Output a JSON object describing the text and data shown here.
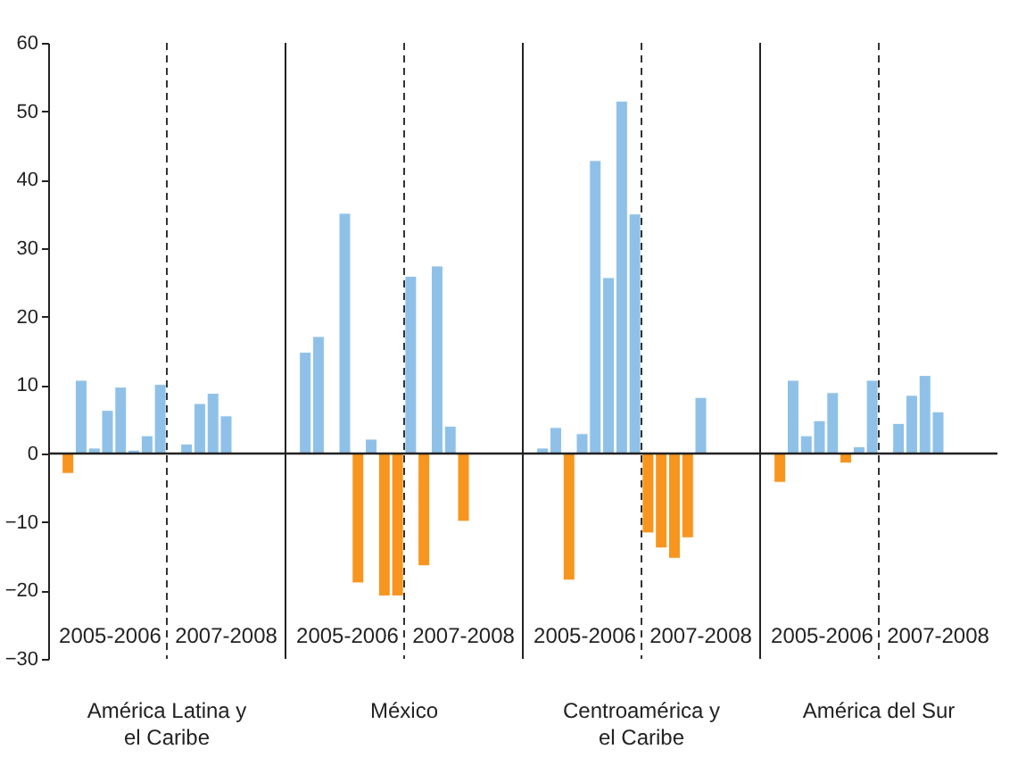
{
  "chart_data": {
    "type": "bar",
    "categories": [
      null,
      null,
      null,
      null,
      null,
      null,
      null,
      null,
      null,
      null,
      null,
      null,
      null,
      null,
      null,
      null,
      null,
      null,
      null,
      null,
      null,
      null,
      null,
      null,
      null,
      null,
      null,
      null,
      null,
      null,
      null,
      null,
      null,
      null,
      null,
      null,
      null,
      null,
      null,
      null,
      null,
      null,
      null,
      null,
      null,
      null,
      null,
      null,
      null,
      null,
      null,
      null,
      null,
      null,
      null,
      null,
      null,
      null,
      null,
      null,
      null,
      null,
      null,
      null,
      null,
      null,
      null,
      null,
      null,
      null,
      null,
      null
    ],
    "values": [
      null,
      -2.9,
      10.7,
      0.8,
      6.3,
      9.7,
      0.5,
      2.6,
      10.1,
      null,
      1.4,
      7.3,
      8.8,
      5.5,
      null,
      null,
      null,
      null,
      null,
      14.8,
      17.1,
      null,
      35.1,
      -18.9,
      2.1,
      -20.8,
      -20.8,
      25.9,
      -16.4,
      27.4,
      4.0,
      -9.9,
      null,
      null,
      null,
      null,
      null,
      0.8,
      3.8,
      -18.5,
      2.9,
      42.8,
      25.7,
      51.5,
      35.0,
      -11.6,
      -13.8,
      -15.3,
      -12.3,
      8.2,
      null,
      null,
      null,
      null,
      null,
      -4.2,
      10.7,
      2.6,
      4.8,
      8.9,
      -1.4,
      1.0,
      10.7,
      null,
      4.4,
      8.5,
      11.4,
      6.1,
      null,
      null,
      null,
      null
    ],
    "colors": [
      null,
      "#f7951e",
      "#8fc1e8",
      "#8fc1e8",
      "#8fc1e8",
      "#8fc1e8",
      "#8fc1e8",
      "#8fc1e8",
      "#8fc1e8",
      null,
      "#8fc1e8",
      "#8fc1e8",
      "#8fc1e8",
      "#8fc1e8",
      null,
      null,
      null,
      null,
      null,
      "#8fc1e8",
      "#8fc1e8",
      null,
      "#8fc1e8",
      "#f7951e",
      "#8fc1e8",
      "#f7951e",
      "#f7951e",
      "#8fc1e8",
      "#f7951e",
      "#8fc1e8",
      "#8fc1e8",
      "#f7951e",
      null,
      null,
      null,
      null,
      null,
      "#8fc1e8",
      "#8fc1e8",
      "#f7951e",
      "#8fc1e8",
      "#8fc1e8",
      "#8fc1e8",
      "#8fc1e8",
      "#8fc1e8",
      "#f7951e",
      "#f7951e",
      "#f7951e",
      "#f7951e",
      "#8fc1e8",
      null,
      null,
      null,
      null,
      null,
      "#f7951e",
      "#8fc1e8",
      "#8fc1e8",
      "#8fc1e8",
      "#8fc1e8",
      "#f7951e",
      "#8fc1e8",
      "#8fc1e8",
      null,
      "#8fc1e8",
      "#8fc1e8",
      "#8fc1e8",
      "#8fc1e8",
      null,
      null,
      null,
      null
    ],
    "ylim": [
      -30,
      60
    ],
    "yticks": [
      -30,
      -20,
      -10,
      0,
      10,
      20,
      30,
      40,
      50,
      60
    ],
    "annotations": [
      "2005-2006",
      "2007-2008",
      "América Latina y el Caribe",
      "2005-2006",
      "2007-2008",
      "México",
      "2005-2006",
      "2007-2008",
      "Centroamérica y el Caribe",
      "2005-2006",
      "2007-2008",
      "América del Sur"
    ]
  }
}
